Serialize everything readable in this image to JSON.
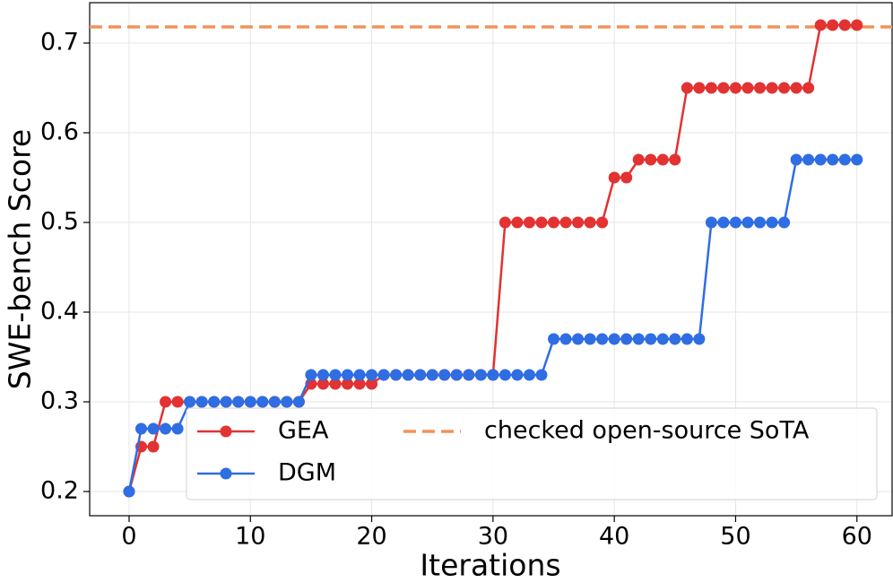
{
  "chart_data": {
    "type": "line",
    "xlabel": "Iterations",
    "ylabel": "SWE-bench Score",
    "x": [
      0,
      1,
      2,
      3,
      4,
      5,
      6,
      7,
      8,
      9,
      10,
      11,
      12,
      13,
      14,
      15,
      16,
      17,
      18,
      19,
      20,
      21,
      22,
      23,
      24,
      25,
      26,
      27,
      28,
      29,
      30,
      31,
      32,
      33,
      34,
      35,
      36,
      37,
      38,
      39,
      40,
      41,
      42,
      43,
      44,
      45,
      46,
      47,
      48,
      49,
      50,
      51,
      52,
      53,
      54,
      55,
      56,
      57,
      58,
      59,
      60
    ],
    "series": [
      {
        "name": "GEA",
        "color": "#e23232",
        "values": [
          0.2,
          0.25,
          0.25,
          0.3,
          0.3,
          0.3,
          0.3,
          0.3,
          0.3,
          0.3,
          0.3,
          0.3,
          0.3,
          0.3,
          0.3,
          0.32,
          0.32,
          0.32,
          0.32,
          0.32,
          0.32,
          0.33,
          0.33,
          0.33,
          0.33,
          0.33,
          0.33,
          0.33,
          0.33,
          0.33,
          0.33,
          0.5,
          0.5,
          0.5,
          0.5,
          0.5,
          0.5,
          0.5,
          0.5,
          0.5,
          0.55,
          0.55,
          0.57,
          0.57,
          0.57,
          0.57,
          0.65,
          0.65,
          0.65,
          0.65,
          0.65,
          0.65,
          0.65,
          0.65,
          0.65,
          0.65,
          0.65,
          0.72,
          0.72,
          0.72,
          0.72
        ]
      },
      {
        "name": "DGM",
        "color": "#2f6de3",
        "values": [
          0.2,
          0.27,
          0.27,
          0.27,
          0.27,
          0.3,
          0.3,
          0.3,
          0.3,
          0.3,
          0.3,
          0.3,
          0.3,
          0.3,
          0.3,
          0.33,
          0.33,
          0.33,
          0.33,
          0.33,
          0.33,
          0.33,
          0.33,
          0.33,
          0.33,
          0.33,
          0.33,
          0.33,
          0.33,
          0.33,
          0.33,
          0.33,
          0.33,
          0.33,
          0.33,
          0.37,
          0.37,
          0.37,
          0.37,
          0.37,
          0.37,
          0.37,
          0.37,
          0.37,
          0.37,
          0.37,
          0.37,
          0.37,
          0.5,
          0.5,
          0.5,
          0.5,
          0.5,
          0.5,
          0.5,
          0.57,
          0.57,
          0.57,
          0.57,
          0.57,
          0.57
        ]
      }
    ],
    "reference_lines": [
      {
        "name": "checked open-source SoTA",
        "value": 0.718,
        "color": "#f0945a",
        "style": "dashed"
      }
    ],
    "xlim": [
      -3.25,
      62.9
    ],
    "ylim": [
      0.173,
      0.745
    ],
    "xticks": [
      0,
      10,
      20,
      30,
      40,
      50,
      60
    ],
    "yticks": [
      0.2,
      0.3,
      0.4,
      0.5,
      0.6,
      0.7
    ],
    "grid": true,
    "legend": {
      "loc": "lower right",
      "ncol": 2
    }
  }
}
